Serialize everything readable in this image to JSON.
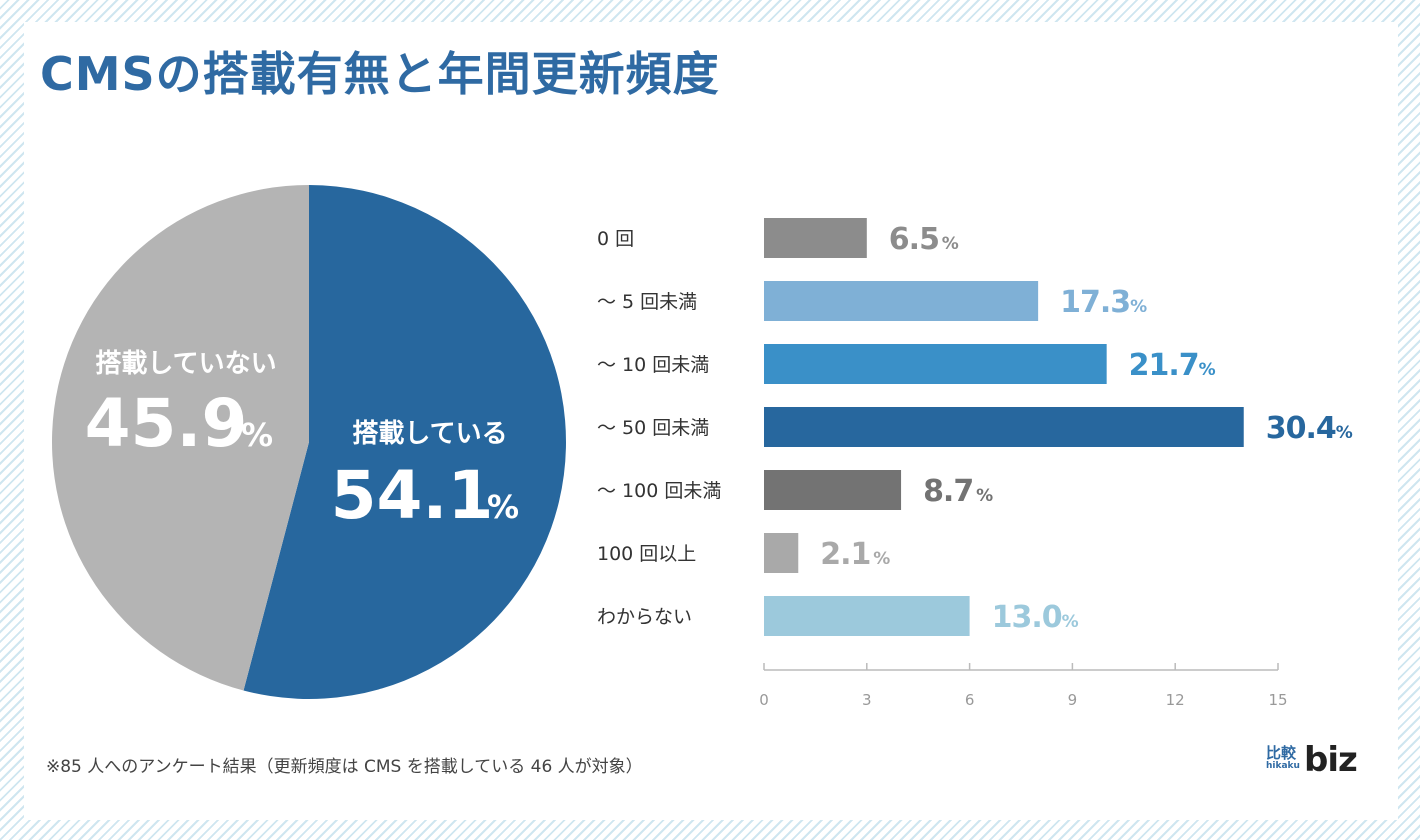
{
  "title": "CMSの搭載有無と年間更新頻度",
  "footnote": "※85 人へのアンケート結果（更新頻度は CMS を搭載している 46 人が対象）",
  "logo": {
    "kanji": "比較",
    "sub": "hikaku",
    "word": "biz"
  },
  "colors": {
    "title": "#2f6aa3",
    "pie_yes": "#27679e",
    "pie_no": "#b4b4b4"
  },
  "chart_data": [
    {
      "type": "pie",
      "title": "",
      "slices": [
        {
          "name": "搭載している",
          "value": 54.1,
          "display": "54.1",
          "unit": "%",
          "color": "#27679e"
        },
        {
          "name": "搭載していない",
          "value": 45.9,
          "display": "45.9",
          "unit": "%",
          "color": "#b4b4b4"
        }
      ],
      "start": "top, clockwise"
    },
    {
      "type": "bar",
      "orientation": "horizontal",
      "title": "",
      "xlabel": "",
      "ylabel": "",
      "categories": [
        "0 回",
        "〜 5 回未満",
        "〜 10 回未満",
        "〜 50 回未満",
        "〜 100 回未満",
        "100 回以上",
        "わからない"
      ],
      "values": [
        6.5,
        17.3,
        21.7,
        30.4,
        8.7,
        2.1,
        13.0
      ],
      "value_labels": [
        "6.5",
        "17.3",
        "21.7",
        "30.4",
        "8.7",
        "2.1",
        "13.0"
      ],
      "unit": "%",
      "bar_lengths_axis_units": [
        3,
        8,
        10,
        14,
        4,
        1,
        6
      ],
      "colors": [
        "#8c8c8c",
        "#7fb0d6",
        "#3a90c8",
        "#27679e",
        "#737373",
        "#a9a9a9",
        "#9cc9dc"
      ],
      "xlim": [
        0,
        15
      ],
      "xticks": [
        "0",
        "3",
        "6",
        "9",
        "12",
        "15"
      ],
      "grid": false,
      "legend": "none"
    }
  ]
}
